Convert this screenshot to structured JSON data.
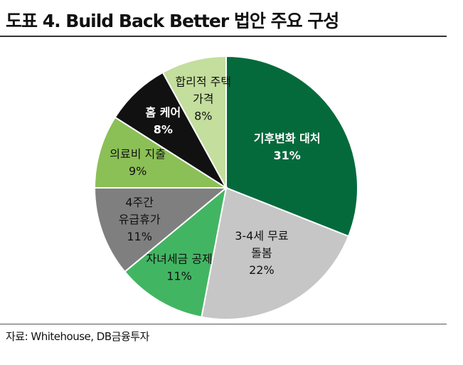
{
  "header": {
    "title": "도표 4. Build Back Better 법안 주요 구성"
  },
  "footer": {
    "source": "자료: Whitehouse, DB금융투자"
  },
  "chart_data": {
    "type": "pie",
    "title": "도표 4. Build Back Better 법안 주요 구성",
    "slices": [
      {
        "label": [
          "기후변화 대처"
        ],
        "value": 31,
        "value_text": "31%",
        "color": "#046A3C",
        "text_color": "#ffffff",
        "bold": true
      },
      {
        "label": [
          "3-4세 무료",
          "돌봄"
        ],
        "value": 22,
        "value_text": "22%",
        "color": "#C6C6C6",
        "text_color": "#111111",
        "bold": false
      },
      {
        "label": [
          "자녀세금 공제"
        ],
        "value": 11,
        "value_text": "11%",
        "color": "#42B562",
        "text_color": "#111111",
        "bold": false
      },
      {
        "label": [
          "4주간",
          "유급휴가"
        ],
        "value": 11,
        "value_text": "11%",
        "color": "#7F7F7F",
        "text_color": "#111111",
        "bold": false
      },
      {
        "label": [
          "의료비 지출"
        ],
        "value": 9,
        "value_text": "9%",
        "color": "#8BC056",
        "text_color": "#111111",
        "bold": false
      },
      {
        "label": [
          "홈 케어"
        ],
        "value": 8,
        "value_text": "8%",
        "color": "#111111",
        "text_color": "#ffffff",
        "bold": true
      },
      {
        "label": [
          "합리적 주택",
          "가격"
        ],
        "value": 8,
        "value_text": "8%",
        "color": "#C3DE9D",
        "text_color": "#111111",
        "bold": false
      }
    ],
    "start_angle_deg": 0,
    "direction": "clockwise",
    "legend": "none"
  }
}
